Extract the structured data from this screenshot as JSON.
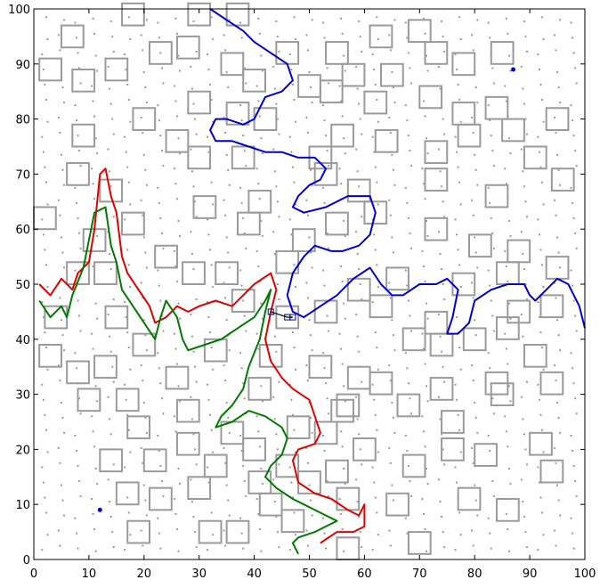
{
  "chart_data": {
    "type": "line",
    "title": "",
    "xlabel": "",
    "ylabel": "",
    "xlim": [
      0,
      100
    ],
    "ylim": [
      0,
      100
    ],
    "x_ticks": [
      "0",
      "10",
      "20",
      "30",
      "40",
      "50",
      "60",
      "70",
      "80",
      "90",
      "100"
    ],
    "y_ticks": [
      "0",
      "10",
      "20",
      "30",
      "40",
      "50",
      "60",
      "70",
      "80",
      "90",
      "100"
    ],
    "grid": false,
    "legend": "none",
    "colors": {
      "red": "#e00000",
      "green": "#007a00",
      "blue": "#0000d0",
      "obstacle": "#9a9a9a",
      "black": "#000000"
    },
    "obstacle_half_size": 2.0,
    "obstacles": [
      [
        7,
        95
      ],
      [
        18,
        99
      ],
      [
        30,
        99
      ],
      [
        37,
        99
      ],
      [
        63,
        95
      ],
      [
        70,
        96
      ],
      [
        3,
        89
      ],
      [
        9,
        87
      ],
      [
        15,
        89
      ],
      [
        23,
        92
      ],
      [
        28,
        93
      ],
      [
        36,
        90
      ],
      [
        40,
        87
      ],
      [
        46,
        92
      ],
      [
        50,
        86
      ],
      [
        55,
        92
      ],
      [
        58,
        88
      ],
      [
        65,
        88
      ],
      [
        73,
        92
      ],
      [
        78,
        90
      ],
      [
        85,
        92
      ],
      [
        20,
        80
      ],
      [
        30,
        83
      ],
      [
        37,
        81
      ],
      [
        42,
        80
      ],
      [
        54,
        85
      ],
      [
        62,
        83
      ],
      [
        72,
        84
      ],
      [
        78,
        81
      ],
      [
        84,
        82
      ],
      [
        87,
        78
      ],
      [
        95,
        80
      ],
      [
        9,
        77
      ],
      [
        26,
        76
      ],
      [
        30,
        73
      ],
      [
        38,
        73
      ],
      [
        52,
        73
      ],
      [
        56,
        77
      ],
      [
        64,
        76
      ],
      [
        73,
        74
      ],
      [
        79,
        77
      ],
      [
        91,
        73
      ],
      [
        96,
        69
      ],
      [
        8,
        70
      ],
      [
        14,
        67
      ],
      [
        18,
        61
      ],
      [
        31,
        64
      ],
      [
        41,
        65
      ],
      [
        53,
        70
      ],
      [
        59,
        67
      ],
      [
        73,
        69
      ],
      [
        84,
        66
      ],
      [
        2,
        62
      ],
      [
        11,
        58
      ],
      [
        24,
        55
      ],
      [
        39,
        61
      ],
      [
        49,
        58
      ],
      [
        55,
        61
      ],
      [
        62,
        63
      ],
      [
        73,
        60
      ],
      [
        81,
        57
      ],
      [
        88,
        56
      ],
      [
        95,
        53
      ],
      [
        8,
        52
      ],
      [
        13,
        52
      ],
      [
        29,
        52
      ],
      [
        35,
        52
      ],
      [
        46,
        54
      ],
      [
        59,
        49
      ],
      [
        66,
        51
      ],
      [
        78,
        50
      ],
      [
        86,
        52
      ],
      [
        4,
        44
      ],
      [
        15,
        44
      ],
      [
        38,
        47
      ],
      [
        46,
        44
      ],
      [
        53,
        45
      ],
      [
        63,
        46
      ],
      [
        73,
        43
      ],
      [
        80,
        40
      ],
      [
        88,
        45
      ],
      [
        94,
        46
      ],
      [
        3,
        37
      ],
      [
        20,
        39
      ],
      [
        33,
        38
      ],
      [
        43,
        37
      ],
      [
        52,
        35
      ],
      [
        59,
        33
      ],
      [
        69,
        40
      ],
      [
        74,
        39
      ],
      [
        86,
        42
      ],
      [
        91,
        37
      ],
      [
        8,
        34
      ],
      [
        13,
        35
      ],
      [
        26,
        33
      ],
      [
        41,
        31
      ],
      [
        57,
        28
      ],
      [
        63,
        32
      ],
      [
        74,
        31
      ],
      [
        84,
        32
      ],
      [
        94,
        32
      ],
      [
        10,
        29
      ],
      [
        17,
        29
      ],
      [
        28,
        27
      ],
      [
        36,
        23
      ],
      [
        48,
        24
      ],
      [
        56,
        27
      ],
      [
        68,
        28
      ],
      [
        76,
        25
      ],
      [
        85,
        30
      ],
      [
        19,
        24
      ],
      [
        28,
        21
      ],
      [
        40,
        20
      ],
      [
        53,
        23
      ],
      [
        60,
        20
      ],
      [
        76,
        20
      ],
      [
        92,
        21
      ],
      [
        14,
        18
      ],
      [
        22,
        18
      ],
      [
        33,
        17
      ],
      [
        41,
        14
      ],
      [
        46,
        17
      ],
      [
        55,
        16
      ],
      [
        69,
        17
      ],
      [
        82,
        19
      ],
      [
        94,
        16
      ],
      [
        17,
        12
      ],
      [
        23,
        11
      ],
      [
        30,
        13
      ],
      [
        43,
        10
      ],
      [
        50,
        14
      ],
      [
        57,
        11
      ],
      [
        66,
        10
      ],
      [
        79,
        11
      ],
      [
        86,
        9
      ],
      [
        19,
        5
      ],
      [
        32,
        5
      ],
      [
        37,
        5
      ],
      [
        47,
        7
      ],
      [
        57,
        2
      ],
      [
        70,
        3
      ]
    ],
    "series": [
      {
        "key": "red",
        "points": [
          [
            1,
            50
          ],
          [
            3,
            48
          ],
          [
            5,
            51
          ],
          [
            7,
            49
          ],
          [
            8,
            52
          ],
          [
            10,
            54
          ],
          [
            11,
            60
          ],
          [
            12,
            70
          ],
          [
            13,
            71
          ],
          [
            14,
            66
          ],
          [
            15,
            63
          ],
          [
            16,
            55
          ],
          [
            17,
            52
          ],
          [
            19,
            49
          ],
          [
            21,
            46
          ],
          [
            22,
            43
          ],
          [
            24,
            44
          ],
          [
            26,
            46
          ],
          [
            28,
            45
          ],
          [
            30,
            46
          ],
          [
            33,
            47
          ],
          [
            36,
            46
          ],
          [
            38,
            48
          ],
          [
            40,
            50
          ],
          [
            43,
            52
          ],
          [
            44,
            49
          ],
          [
            43,
            45
          ],
          [
            42,
            40
          ],
          [
            43,
            36
          ],
          [
            45,
            33
          ],
          [
            47,
            31
          ],
          [
            50,
            29
          ],
          [
            51,
            26
          ],
          [
            52,
            23
          ],
          [
            51,
            21
          ],
          [
            48,
            20
          ],
          [
            47,
            18
          ],
          [
            48,
            14
          ],
          [
            51,
            12
          ],
          [
            54,
            11
          ],
          [
            57,
            9
          ],
          [
            59,
            8
          ],
          [
            60,
            10
          ],
          [
            60,
            6
          ],
          [
            58,
            5
          ],
          [
            55,
            5
          ],
          [
            52,
            3
          ]
        ]
      },
      {
        "key": "green",
        "points": [
          [
            1,
            47
          ],
          [
            3,
            44
          ],
          [
            5,
            46
          ],
          [
            6,
            44
          ],
          [
            7,
            48
          ],
          [
            9,
            53
          ],
          [
            10,
            58
          ],
          [
            11,
            63
          ],
          [
            13,
            64
          ],
          [
            14,
            57
          ],
          [
            15,
            54
          ],
          [
            16,
            49
          ],
          [
            18,
            46
          ],
          [
            20,
            43
          ],
          [
            22,
            40
          ],
          [
            23,
            44
          ],
          [
            24,
            47
          ],
          [
            26,
            44
          ],
          [
            27,
            40
          ],
          [
            28,
            38
          ],
          [
            31,
            39
          ],
          [
            34,
            40
          ],
          [
            37,
            42
          ],
          [
            40,
            44
          ],
          [
            42,
            47
          ],
          [
            43,
            49
          ],
          [
            42,
            45
          ],
          [
            41,
            40
          ],
          [
            39,
            35
          ],
          [
            38,
            31
          ],
          [
            36,
            28
          ],
          [
            34,
            26
          ],
          [
            33,
            24
          ],
          [
            36,
            25
          ],
          [
            39,
            27
          ],
          [
            42,
            26
          ],
          [
            45,
            24
          ],
          [
            46,
            22
          ],
          [
            45,
            19
          ],
          [
            43,
            17
          ],
          [
            42,
            15
          ],
          [
            44,
            13
          ],
          [
            47,
            11
          ],
          [
            49,
            10
          ],
          [
            51,
            9
          ],
          [
            53,
            8
          ],
          [
            55,
            7
          ],
          [
            53,
            6
          ],
          [
            51,
            5
          ],
          [
            48,
            4
          ],
          [
            47,
            3
          ],
          [
            48,
            1
          ]
        ]
      },
      {
        "key": "blue",
        "points": [
          [
            32,
            100
          ],
          [
            35,
            98
          ],
          [
            38,
            96
          ],
          [
            40,
            94
          ],
          [
            43,
            92
          ],
          [
            46,
            90
          ],
          [
            47,
            87
          ],
          [
            45,
            85
          ],
          [
            42,
            84
          ],
          [
            41,
            82
          ],
          [
            40,
            80
          ],
          [
            38,
            79
          ],
          [
            35,
            80
          ],
          [
            33,
            80
          ],
          [
            32,
            78
          ],
          [
            33,
            76
          ],
          [
            36,
            76
          ],
          [
            39,
            75
          ],
          [
            42,
            74
          ],
          [
            45,
            74
          ],
          [
            48,
            73
          ],
          [
            51,
            73
          ],
          [
            53,
            71
          ],
          [
            52,
            69
          ],
          [
            50,
            68
          ],
          [
            48,
            66
          ],
          [
            47,
            64
          ],
          [
            49,
            63
          ],
          [
            53,
            64
          ],
          [
            57,
            66
          ],
          [
            61,
            66
          ],
          [
            62,
            63
          ],
          [
            61,
            59
          ],
          [
            59,
            57
          ],
          [
            56,
            56
          ],
          [
            54,
            56
          ],
          [
            51,
            57
          ],
          [
            49,
            55
          ],
          [
            47,
            52
          ],
          [
            46,
            48
          ],
          [
            47,
            45
          ],
          [
            49,
            44
          ],
          [
            52,
            46
          ],
          [
            55,
            48
          ],
          [
            58,
            51
          ],
          [
            61,
            53
          ],
          [
            63,
            50
          ],
          [
            65,
            48
          ],
          [
            67,
            48
          ],
          [
            70,
            50
          ],
          [
            73,
            50
          ],
          [
            75,
            51
          ],
          [
            77,
            49
          ],
          [
            76,
            44
          ],
          [
            75,
            41
          ],
          [
            77,
            41
          ],
          [
            79,
            43
          ],
          [
            80,
            47
          ],
          [
            83,
            49
          ],
          [
            86,
            50
          ],
          [
            89,
            50
          ],
          [
            90,
            48
          ],
          [
            91,
            47
          ],
          [
            93,
            49
          ],
          [
            95,
            51
          ],
          [
            97,
            50
          ],
          [
            99,
            46
          ],
          [
            100,
            42
          ]
        ]
      },
      {
        "key": "black",
        "points": [
          [
            43,
            45
          ],
          [
            46,
            44
          ],
          [
            47,
            44
          ]
        ]
      }
    ],
    "scatter_points": [
      {
        "key": "blue",
        "x": 12,
        "y": 9
      },
      {
        "key": "blue",
        "x": 87,
        "y": 89
      }
    ]
  }
}
